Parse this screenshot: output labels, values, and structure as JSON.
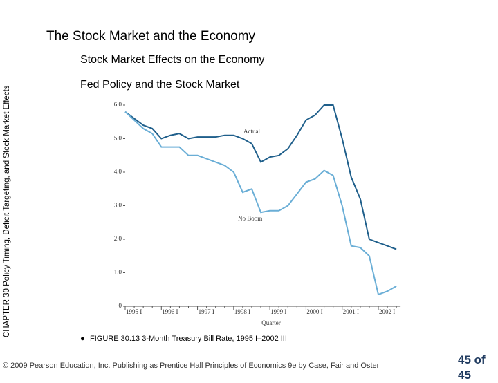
{
  "title": "The Stock Market and the Economy",
  "subtitle": "Stock Market Effects on the Economy",
  "heading": "Fed Policy and the Stock Market",
  "side_text": "CHAPTER 30 Policy Timing, Deficit Targeting, and Stock Market Effects",
  "caption": "FIGURE 30.13  3-Month Treasury Bill Rate, 1995 I–2002 III",
  "footer": "© 2009 Pearson Education, Inc. Publishing as Prentice Hall   Principles of Economics 9e by Case, Fair and Oster",
  "page_number": "45 of 45",
  "chart_data": {
    "type": "line",
    "x_label": "Quarter",
    "categories": [
      "1995 I",
      null,
      null,
      null,
      "1996 I",
      null,
      null,
      null,
      "1997 I",
      null,
      null,
      null,
      "1998 I",
      null,
      null,
      null,
      "1999 I",
      null,
      null,
      null,
      "2000 I",
      null,
      null,
      null,
      "2001 I",
      null,
      null,
      null,
      "2002 I",
      null,
      null
    ],
    "series": [
      {
        "name": "Actual",
        "color": "#1f5f8b",
        "values": [
          5.8,
          5.6,
          5.4,
          5.3,
          5.0,
          5.1,
          5.15,
          5.0,
          5.05,
          5.05,
          5.05,
          5.1,
          5.1,
          5.0,
          4.85,
          4.3,
          4.45,
          4.5,
          4.7,
          5.1,
          5.55,
          5.7,
          6.0,
          6.0,
          5.0,
          3.85,
          3.2,
          2.0,
          1.9,
          1.8,
          1.7
        ]
      },
      {
        "name": "No Boom",
        "color": "#6aaed6",
        "values": [
          5.8,
          5.55,
          5.3,
          5.15,
          4.75,
          4.75,
          4.75,
          4.5,
          4.5,
          4.4,
          4.3,
          4.2,
          4.0,
          3.4,
          3.5,
          2.8,
          2.85,
          2.85,
          3.0,
          3.35,
          3.7,
          3.8,
          4.05,
          3.9,
          3.0,
          1.8,
          1.75,
          1.5,
          0.35,
          0.45,
          0.6
        ]
      }
    ],
    "ylim": [
      0,
      6
    ],
    "yticks": [
      0,
      {
        "value": 1,
        "label": "1.0"
      },
      {
        "value": 2,
        "label": "2.0"
      },
      {
        "value": 3,
        "label": "3.0"
      },
      {
        "value": 4,
        "label": "4.0"
      },
      {
        "value": 5,
        "label": "5.0"
      },
      {
        "value": 6,
        "label": "6.0"
      }
    ]
  }
}
